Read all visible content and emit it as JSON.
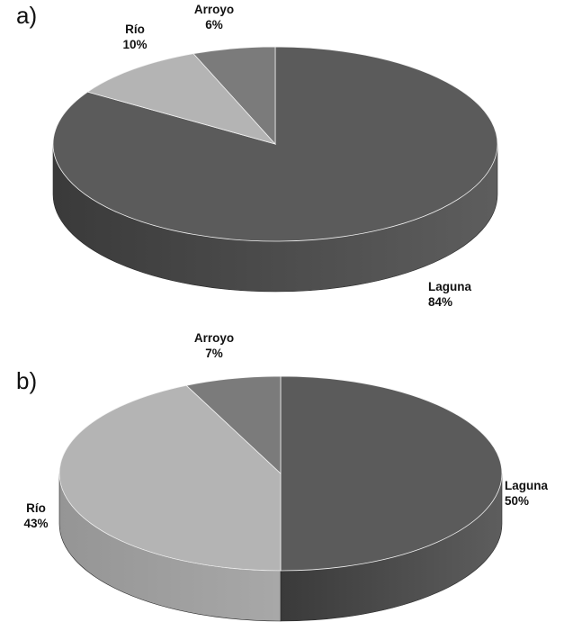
{
  "chart_data": [
    {
      "type": "pie",
      "panel": "a)",
      "title": "",
      "categories": [
        "Laguna",
        "Río",
        "Arroyo"
      ],
      "values": [
        84,
        10,
        6
      ],
      "value_labels": [
        "84%",
        "10%",
        "6%"
      ],
      "colors": [
        "#5b5b5b",
        "#b4b4b4",
        "#7b7b7b"
      ],
      "side_colors": [
        "#3a3a3a",
        "#959595",
        "#555555"
      ],
      "legend": "none",
      "start": "12 o'clock, clockwise"
    },
    {
      "type": "pie",
      "panel": "b)",
      "title": "",
      "categories": [
        "Laguna",
        "Río",
        "Arroyo"
      ],
      "values": [
        50,
        43,
        7
      ],
      "value_labels": [
        "50%",
        "43%",
        "7%"
      ],
      "colors": [
        "#5b5b5b",
        "#b4b4b4",
        "#7b7b7b"
      ],
      "side_colors": [
        "#3a3a3a",
        "#959595",
        "#555555"
      ],
      "legend": "none",
      "start": "12 o'clock, clockwise"
    }
  ]
}
